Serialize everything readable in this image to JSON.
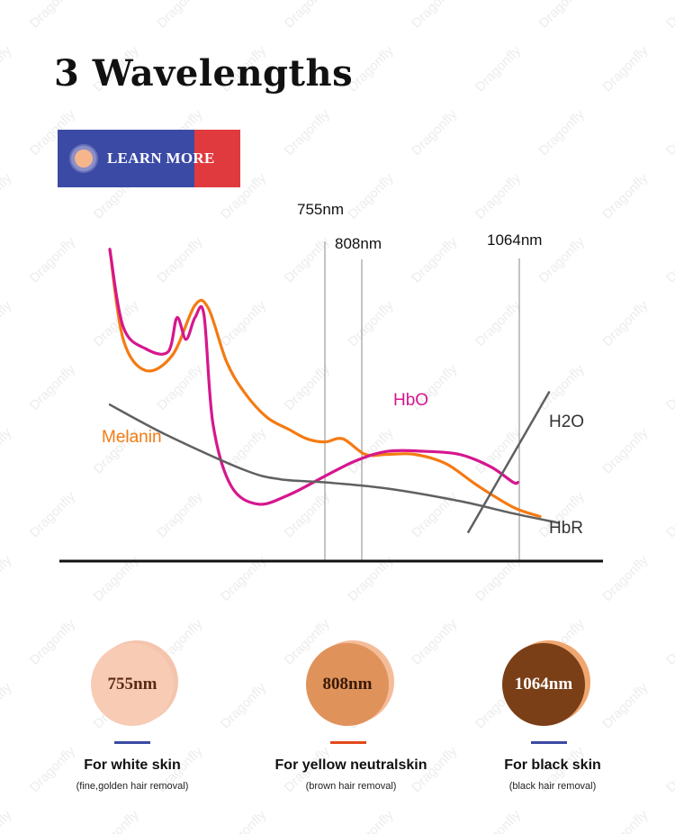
{
  "title": "3 Wavelengths",
  "learn_more": {
    "label": "LEARN MORE"
  },
  "chart_data": {
    "type": "line",
    "title": "",
    "xlabel": "",
    "ylabel": "",
    "markers": [
      "755nm",
      "808nm",
      "1064nm"
    ],
    "series": [
      {
        "name": "Melanin",
        "color": "#f47a12",
        "values": [
          [
            0,
            96
          ],
          [
            3,
            67
          ],
          [
            8,
            57
          ],
          [
            14,
            62
          ],
          [
            19,
            78
          ],
          [
            22,
            77
          ],
          [
            26,
            60
          ],
          [
            30,
            50
          ],
          [
            35,
            42
          ],
          [
            40,
            38
          ],
          [
            44,
            35
          ],
          [
            48,
            34
          ],
          [
            52,
            35
          ],
          [
            57,
            30
          ],
          [
            62,
            30
          ],
          [
            68,
            30
          ],
          [
            75,
            27
          ],
          [
            82,
            20
          ],
          [
            90,
            13
          ],
          [
            96,
            10
          ]
        ]
      },
      {
        "name": "HbO",
        "color": "#d6168e",
        "values": [
          [
            0,
            96
          ],
          [
            3,
            71
          ],
          [
            8,
            64
          ],
          [
            13,
            63
          ],
          [
            15,
            74
          ],
          [
            17,
            67
          ],
          [
            19,
            74
          ],
          [
            21,
            75
          ],
          [
            23,
            40
          ],
          [
            27,
            20
          ],
          [
            33,
            14
          ],
          [
            40,
            17
          ],
          [
            48,
            23
          ],
          [
            55,
            28
          ],
          [
            62,
            31
          ],
          [
            70,
            31
          ],
          [
            78,
            30
          ],
          [
            85,
            26
          ],
          [
            90,
            21
          ],
          [
            91,
            21
          ]
        ]
      },
      {
        "name": "HbR",
        "color": "#606060",
        "values": [
          [
            0,
            46
          ],
          [
            13,
            36
          ],
          [
            30,
            25
          ],
          [
            38,
            22
          ],
          [
            48,
            21
          ],
          [
            62,
            19
          ],
          [
            78,
            15
          ],
          [
            90,
            11
          ],
          [
            100,
            8
          ]
        ]
      },
      {
        "name": "H2O",
        "color": "#606060",
        "values": [
          [
            80,
            5
          ],
          [
            98,
            50
          ]
        ]
      }
    ]
  },
  "cards": [
    {
      "label": "755nm",
      "circle_color": "#f8cbb5",
      "shadow_color": "#f4c4ad",
      "text_color": "#5b2a13",
      "underline_color": "#3b4ba5",
      "caption": "For white skin",
      "subcaption": "(fine,golden hair removal)"
    },
    {
      "label": "808nm",
      "circle_color": "#e0925b",
      "shadow_color": "#f5bc99",
      "text_color": "#3a1a08",
      "underline_color": "#e14a1b",
      "caption": "For yellow neutralskin",
      "subcaption": "(brown hair removal)"
    },
    {
      "label": "1064nm",
      "circle_color": "#7a3f17",
      "shadow_color": "#f0a66f",
      "text_color": "#ffffff",
      "underline_color": "#3b4ba5",
      "caption": "For black skin",
      "subcaption": "(black hair removal)"
    }
  ]
}
